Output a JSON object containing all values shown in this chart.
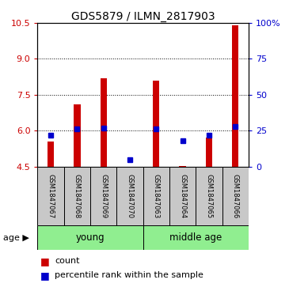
{
  "title": "GDS5879 / ILMN_2817903",
  "samples": [
    "GSM1847067",
    "GSM1847068",
    "GSM1847069",
    "GSM1847070",
    "GSM1847063",
    "GSM1847064",
    "GSM1847065",
    "GSM1847066"
  ],
  "groups": [
    {
      "label": "young",
      "color": "#90ee90"
    },
    {
      "label": "middle age",
      "color": "#90ee90"
    }
  ],
  "counts": [
    5.55,
    7.1,
    8.2,
    4.5,
    8.1,
    4.52,
    5.7,
    10.4
  ],
  "percentile_ranks": [
    22,
    26,
    27,
    4.5,
    26,
    18,
    22,
    28
  ],
  "ylim_left": [
    4.5,
    10.5
  ],
  "ylim_right": [
    0,
    100
  ],
  "yticks_left": [
    4.5,
    6.0,
    7.5,
    9.0,
    10.5
  ],
  "yticks_right": [
    0,
    25,
    50,
    75,
    100
  ],
  "bar_color": "#cc0000",
  "dot_color": "#0000cc",
  "bar_width": 0.25,
  "label_color_left": "#cc0000",
  "label_color_right": "#0000cc",
  "legend_count": "count",
  "legend_percentile": "percentile rank within the sample",
  "bar_bottom": 4.5,
  "grid_lines": [
    6.0,
    7.5,
    9.0
  ]
}
